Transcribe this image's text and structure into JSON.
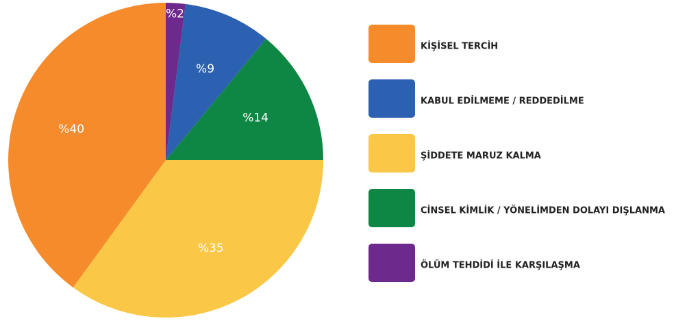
{
  "chart_data": {
    "type": "pie",
    "values": [
      40,
      35,
      14,
      9,
      2
    ],
    "value_labels": [
      "%40",
      "%35",
      "%14",
      "%9",
      "%2"
    ],
    "colors": [
      "#f68b2b",
      "#fac746",
      "#0f8744",
      "#2b61b0",
      "#6d2a8c"
    ],
    "legend": [
      {
        "name": "KİŞİSEL TERCİH",
        "color": "#f68b2b"
      },
      {
        "name": "KABUL EDİLMEME / REDDEDİLME",
        "color": "#2b61b0"
      },
      {
        "name": "ŞİDDETE MARUZ KALMA",
        "color": "#fac746"
      },
      {
        "name": "CİNSEL KİMLİK / YÖNELİMDEN DOLAYI DIŞLANMA",
        "color": "#0f8744"
      },
      {
        "name": "ÖLÜM TEHDİDİ İLE KARŞILAŞMA",
        "color": "#6d2a8c"
      }
    ]
  }
}
